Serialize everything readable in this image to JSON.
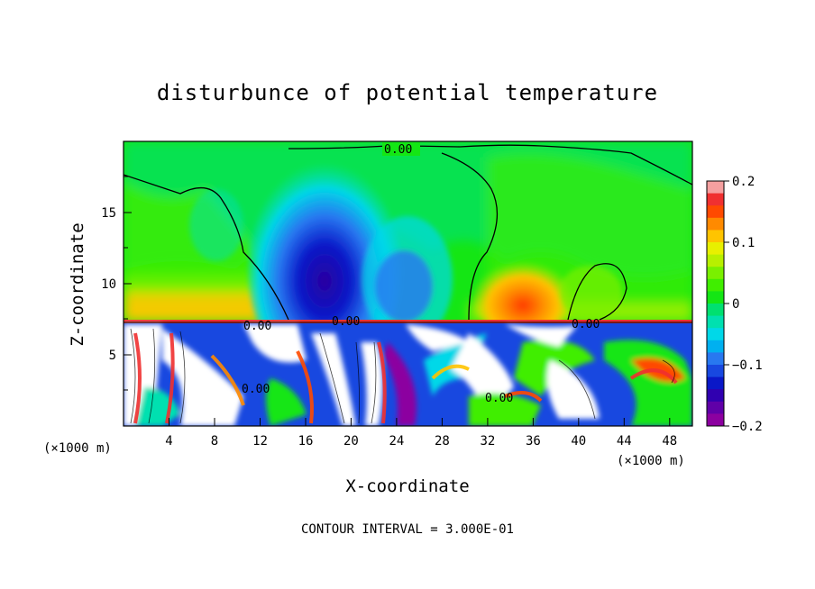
{
  "chart_data": {
    "type": "heatmap",
    "title": "disturbunce of potential temperature",
    "xlabel": "X-coordinate",
    "ylabel": "Z-coordinate",
    "x_unit": "(×1000 m)",
    "x_unit_right": "(×1000 m)",
    "xlim": [
      0,
      50
    ],
    "ylim": [
      0,
      20
    ],
    "x_ticks": [
      4,
      8,
      12,
      16,
      20,
      24,
      28,
      32,
      36,
      40,
      44,
      48
    ],
    "y_ticks": [
      5,
      10,
      15
    ],
    "colorbar": {
      "range": [
        -0.2,
        0.2
      ],
      "tick_labels": [
        "0.2",
        "0.1",
        "0",
        "−0.1",
        "−0.2"
      ],
      "tick_values": [
        0.2,
        0.1,
        0,
        -0.1,
        -0.2
      ],
      "colors": [
        "#f5a0a0",
        "#f03030",
        "#ff4a00",
        "#ff8a00",
        "#ffc400",
        "#e8f000",
        "#b8f000",
        "#7af000",
        "#40ee00",
        "#14e614",
        "#00e070",
        "#00e0b0",
        "#00d8e8",
        "#00b0f0",
        "#2878f0",
        "#1848e0",
        "#0a18c8",
        "#3000b0",
        "#6000a8",
        "#8c00a0"
      ]
    },
    "contour_labels": [
      "0.00",
      "0.00",
      "0.00",
      "0.00",
      "0.00",
      "0.00"
    ],
    "note": "CONTOUR INTERVAL = 3.000E-01"
  }
}
